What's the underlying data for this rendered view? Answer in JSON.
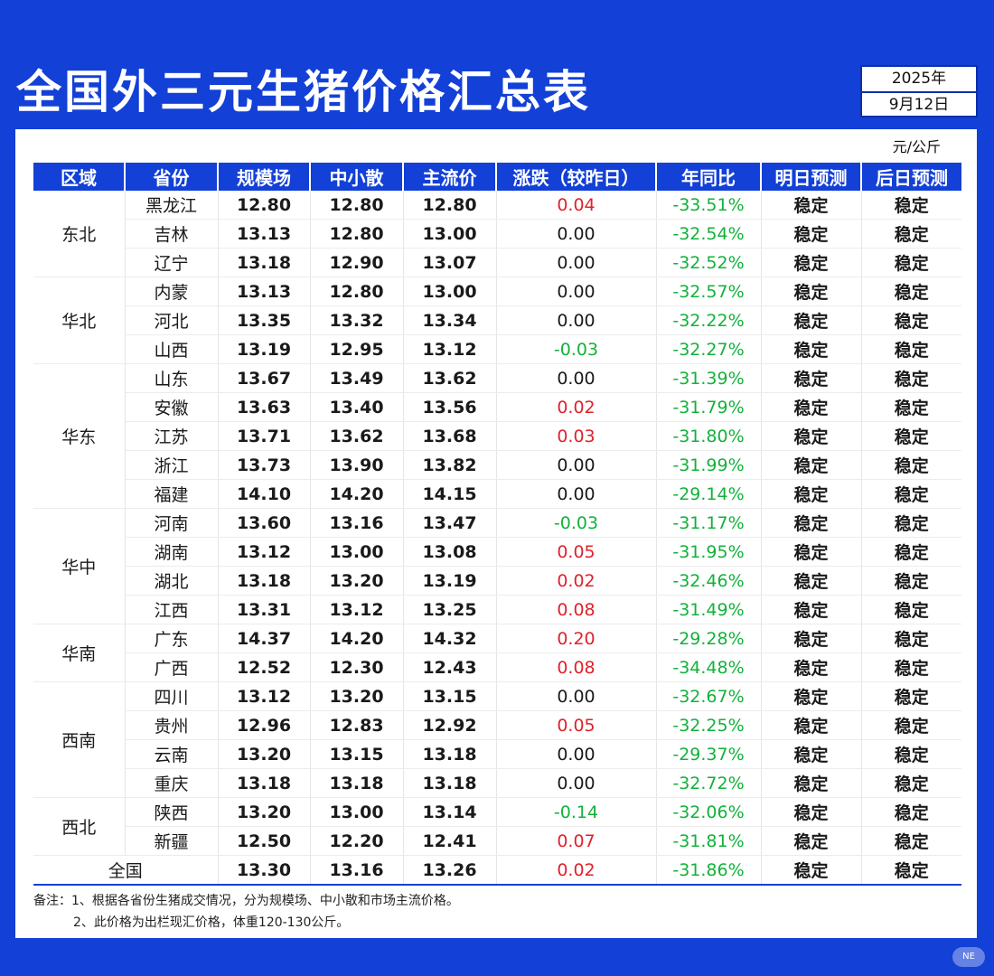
{
  "title": "全国外三元生猪价格汇总表",
  "date": {
    "year": "2025年",
    "day": "9月12日"
  },
  "unit": "元/公斤",
  "headers": [
    "区域",
    "省份",
    "规模场",
    "中小散",
    "主流价",
    "涨跌（较昨日）",
    "年同比",
    "明日预测",
    "后日预测"
  ],
  "regions": [
    {
      "name": "东北",
      "rows": [
        {
          "province": "黑龙江",
          "large": "12.80",
          "small": "12.80",
          "main": "12.80",
          "change": "0.04",
          "dir": "up",
          "yoy": "-33.51%",
          "tomorrow": "稳定",
          "dayafter": "稳定"
        },
        {
          "province": "吉林",
          "large": "13.13",
          "small": "12.80",
          "main": "13.00",
          "change": "0.00",
          "dir": "flat",
          "yoy": "-32.54%",
          "tomorrow": "稳定",
          "dayafter": "稳定"
        },
        {
          "province": "辽宁",
          "large": "13.18",
          "small": "12.90",
          "main": "13.07",
          "change": "0.00",
          "dir": "flat",
          "yoy": "-32.52%",
          "tomorrow": "稳定",
          "dayafter": "稳定"
        }
      ]
    },
    {
      "name": "华北",
      "rows": [
        {
          "province": "内蒙",
          "large": "13.13",
          "small": "12.80",
          "main": "13.00",
          "change": "0.00",
          "dir": "flat",
          "yoy": "-32.57%",
          "tomorrow": "稳定",
          "dayafter": "稳定"
        },
        {
          "province": "河北",
          "large": "13.35",
          "small": "13.32",
          "main": "13.34",
          "change": "0.00",
          "dir": "flat",
          "yoy": "-32.22%",
          "tomorrow": "稳定",
          "dayafter": "稳定"
        },
        {
          "province": "山西",
          "large": "13.19",
          "small": "12.95",
          "main": "13.12",
          "change": "-0.03",
          "dir": "down",
          "yoy": "-32.27%",
          "tomorrow": "稳定",
          "dayafter": "稳定"
        }
      ]
    },
    {
      "name": "华东",
      "rows": [
        {
          "province": "山东",
          "large": "13.67",
          "small": "13.49",
          "main": "13.62",
          "change": "0.00",
          "dir": "flat",
          "yoy": "-31.39%",
          "tomorrow": "稳定",
          "dayafter": "稳定"
        },
        {
          "province": "安徽",
          "large": "13.63",
          "small": "13.40",
          "main": "13.56",
          "change": "0.02",
          "dir": "up",
          "yoy": "-31.79%",
          "tomorrow": "稳定",
          "dayafter": "稳定"
        },
        {
          "province": "江苏",
          "large": "13.71",
          "small": "13.62",
          "main": "13.68",
          "change": "0.03",
          "dir": "up",
          "yoy": "-31.80%",
          "tomorrow": "稳定",
          "dayafter": "稳定"
        },
        {
          "province": "浙江",
          "large": "13.73",
          "small": "13.90",
          "main": "13.82",
          "change": "0.00",
          "dir": "flat",
          "yoy": "-31.99%",
          "tomorrow": "稳定",
          "dayafter": "稳定"
        },
        {
          "province": "福建",
          "large": "14.10",
          "small": "14.20",
          "main": "14.15",
          "change": "0.00",
          "dir": "flat",
          "yoy": "-29.14%",
          "tomorrow": "稳定",
          "dayafter": "稳定"
        }
      ]
    },
    {
      "name": "华中",
      "rows": [
        {
          "province": "河南",
          "large": "13.60",
          "small": "13.16",
          "main": "13.47",
          "change": "-0.03",
          "dir": "down",
          "yoy": "-31.17%",
          "tomorrow": "稳定",
          "dayafter": "稳定"
        },
        {
          "province": "湖南",
          "large": "13.12",
          "small": "13.00",
          "main": "13.08",
          "change": "0.05",
          "dir": "up",
          "yoy": "-31.95%",
          "tomorrow": "稳定",
          "dayafter": "稳定"
        },
        {
          "province": "湖北",
          "large": "13.18",
          "small": "13.20",
          "main": "13.19",
          "change": "0.02",
          "dir": "up",
          "yoy": "-32.46%",
          "tomorrow": "稳定",
          "dayafter": "稳定"
        },
        {
          "province": "江西",
          "large": "13.31",
          "small": "13.12",
          "main": "13.25",
          "change": "0.08",
          "dir": "up",
          "yoy": "-31.49%",
          "tomorrow": "稳定",
          "dayafter": "稳定"
        }
      ]
    },
    {
      "name": "华南",
      "rows": [
        {
          "province": "广东",
          "large": "14.37",
          "small": "14.20",
          "main": "14.32",
          "change": "0.20",
          "dir": "up",
          "yoy": "-29.28%",
          "tomorrow": "稳定",
          "dayafter": "稳定"
        },
        {
          "province": "广西",
          "large": "12.52",
          "small": "12.30",
          "main": "12.43",
          "change": "0.08",
          "dir": "up",
          "yoy": "-34.48%",
          "tomorrow": "稳定",
          "dayafter": "稳定"
        }
      ]
    },
    {
      "name": "西南",
      "rows": [
        {
          "province": "四川",
          "large": "13.12",
          "small": "13.20",
          "main": "13.15",
          "change": "0.00",
          "dir": "flat",
          "yoy": "-32.67%",
          "tomorrow": "稳定",
          "dayafter": "稳定"
        },
        {
          "province": "贵州",
          "large": "12.96",
          "small": "12.83",
          "main": "12.92",
          "change": "0.05",
          "dir": "up",
          "yoy": "-32.25%",
          "tomorrow": "稳定",
          "dayafter": "稳定"
        },
        {
          "province": "云南",
          "large": "13.20",
          "small": "13.15",
          "main": "13.18",
          "change": "0.00",
          "dir": "flat",
          "yoy": "-29.37%",
          "tomorrow": "稳定",
          "dayafter": "稳定"
        },
        {
          "province": "重庆",
          "large": "13.18",
          "small": "13.18",
          "main": "13.18",
          "change": "0.00",
          "dir": "flat",
          "yoy": "-32.72%",
          "tomorrow": "稳定",
          "dayafter": "稳定"
        }
      ]
    },
    {
      "name": "西北",
      "rows": [
        {
          "province": "陕西",
          "large": "13.20",
          "small": "13.00",
          "main": "13.14",
          "change": "-0.14",
          "dir": "down",
          "yoy": "-32.06%",
          "tomorrow": "稳定",
          "dayafter": "稳定"
        },
        {
          "province": "新疆",
          "large": "12.50",
          "small": "12.20",
          "main": "12.41",
          "change": "0.07",
          "dir": "up",
          "yoy": "-31.81%",
          "tomorrow": "稳定",
          "dayafter": "稳定"
        }
      ]
    }
  ],
  "national": {
    "label": "全国",
    "large": "13.30",
    "small": "13.16",
    "main": "13.26",
    "change": "0.02",
    "dir": "up",
    "yoy": "-31.86%",
    "tomorrow": "稳定",
    "dayafter": "稳定"
  },
  "notes": [
    "备注：1、根据各省份生猪成交情况，分为规模场、中小散和市场主流价格。",
    "2、此价格为出栏现汇价格，体重120-130公斤。"
  ]
}
